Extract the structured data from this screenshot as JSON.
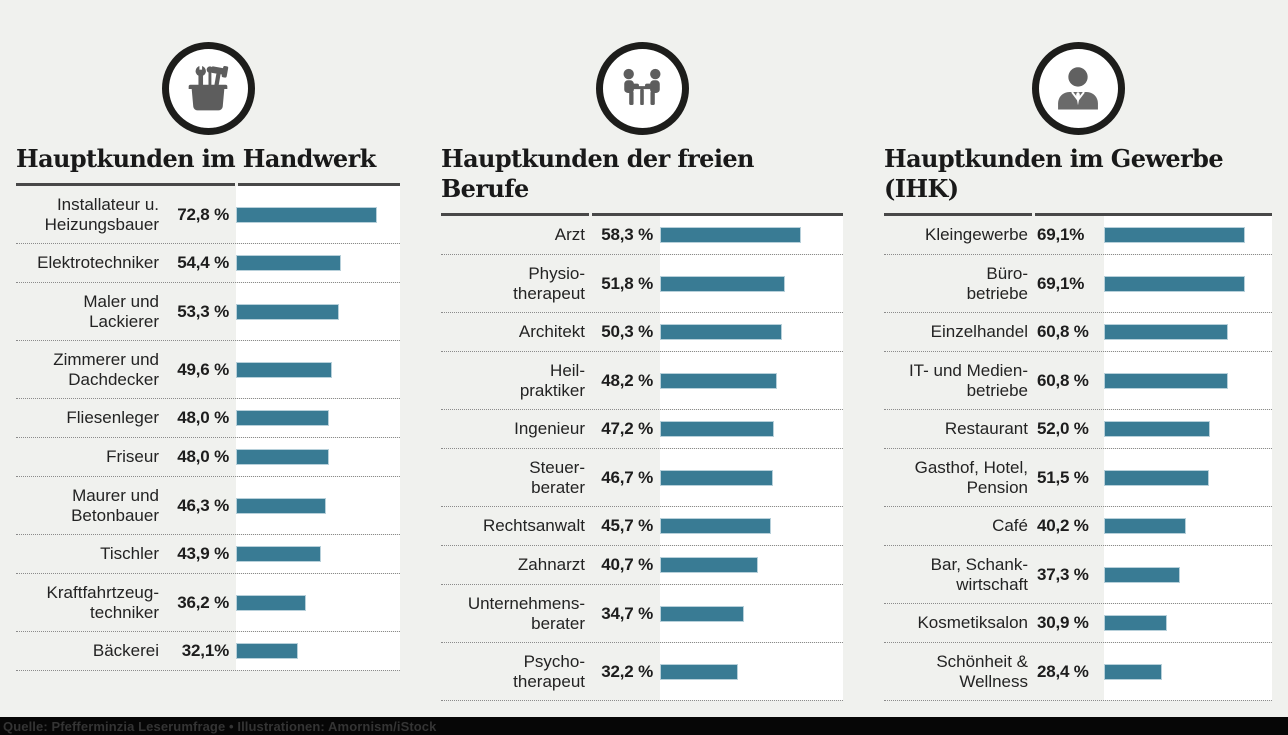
{
  "footer": {
    "text": "Quelle: Pfefferminzia Leserumfrage • Illustrationen: Amornism/iStock"
  },
  "colors": {
    "background": "#f0f1ee",
    "bar": "#397b94",
    "bar_border": "#b7d0da",
    "bar_track": "#ffffff",
    "icon_ring": "#1d1d1b",
    "icon_glyph": "#5d5d5d",
    "title_text": "#191919",
    "footer_bar": "#060606"
  },
  "chart_data": [
    {
      "type": "bar",
      "orientation": "horizontal",
      "title": "Hauptkunden im Handwerk",
      "icon": "toolbox-icon",
      "value_suffix": "%",
      "value_range": [
        0,
        72.8
      ],
      "rows": [
        {
          "label_lines": [
            "Installateur u.",
            "Heizungsbauer"
          ],
          "value": 72.8,
          "display": "72,8 %"
        },
        {
          "label_lines": [
            "Elektrotechniker"
          ],
          "value": 54.4,
          "display": "54,4 %"
        },
        {
          "label_lines": [
            "Maler und",
            "Lackierer"
          ],
          "value": 53.3,
          "display": "53,3 %"
        },
        {
          "label_lines": [
            "Zimmerer und",
            "Dachdecker"
          ],
          "value": 49.6,
          "display": "49,6 %"
        },
        {
          "label_lines": [
            "Fliesenleger"
          ],
          "value": 48.0,
          "display": "48,0 %"
        },
        {
          "label_lines": [
            "Friseur"
          ],
          "value": 48.0,
          "display": "48,0 %"
        },
        {
          "label_lines": [
            "Maurer und",
            "Betonbauer"
          ],
          "value": 46.3,
          "display": "46,3 %"
        },
        {
          "label_lines": [
            "Tischler"
          ],
          "value": 43.9,
          "display": "43,9 %"
        },
        {
          "label_lines": [
            "Kraftfahrtzeug-",
            "techniker"
          ],
          "value": 36.2,
          "display": "36,2 %"
        },
        {
          "label_lines": [
            "Bäckerei"
          ],
          "value": 32.1,
          "display": "32,1%"
        }
      ]
    },
    {
      "type": "bar",
      "orientation": "horizontal",
      "title": "Hauptkunden der freien Berufe",
      "icon": "meeting-icon",
      "value_suffix": "%",
      "value_range": [
        0,
        58.3
      ],
      "rows": [
        {
          "label_lines": [
            "Arzt"
          ],
          "value": 58.3,
          "display": "58,3 %"
        },
        {
          "label_lines": [
            "Physio-",
            "therapeut"
          ],
          "value": 51.8,
          "display": "51,8 %"
        },
        {
          "label_lines": [
            "Architekt"
          ],
          "value": 50.3,
          "display": "50,3 %"
        },
        {
          "label_lines": [
            "Heil-",
            "praktiker"
          ],
          "value": 48.2,
          "display": "48,2 %"
        },
        {
          "label_lines": [
            "Ingenieur"
          ],
          "value": 47.2,
          "display": "47,2 %"
        },
        {
          "label_lines": [
            "Steuer-",
            "berater"
          ],
          "value": 46.7,
          "display": "46,7 %"
        },
        {
          "label_lines": [
            "Rechtsanwalt"
          ],
          "value": 45.7,
          "display": "45,7 %"
        },
        {
          "label_lines": [
            "Zahnarzt"
          ],
          "value": 40.7,
          "display": "40,7 %"
        },
        {
          "label_lines": [
            "Unternehmens-",
            "berater"
          ],
          "value": 34.7,
          "display": "34,7 %"
        },
        {
          "label_lines": [
            "Psycho-",
            "therapeut"
          ],
          "value": 32.2,
          "display": "32,2 %"
        }
      ]
    },
    {
      "type": "bar",
      "orientation": "horizontal",
      "title": "Hauptkunden im Gewerbe (IHK)",
      "icon": "businessman-icon",
      "value_suffix": "%",
      "value_range": [
        0,
        69.1
      ],
      "rows": [
        {
          "label_lines": [
            "Kleingewerbe"
          ],
          "value": 69.1,
          "display": "69,1%"
        },
        {
          "label_lines": [
            "Büro-",
            "betriebe"
          ],
          "value": 69.1,
          "display": "69,1%"
        },
        {
          "label_lines": [
            "Einzelhandel"
          ],
          "value": 60.8,
          "display": "60,8 %"
        },
        {
          "label_lines": [
            "IT- und Medien-",
            "betriebe"
          ],
          "value": 60.8,
          "display": "60,8 %"
        },
        {
          "label_lines": [
            "Restaurant"
          ],
          "value": 52.0,
          "display": "52,0 %"
        },
        {
          "label_lines": [
            "Gasthof, Hotel,",
            "Pension"
          ],
          "value": 51.5,
          "display": "51,5 %"
        },
        {
          "label_lines": [
            "Café"
          ],
          "value": 40.2,
          "display": "40,2 %"
        },
        {
          "label_lines": [
            "Bar, Schank-",
            "wirtschaft"
          ],
          "value": 37.3,
          "display": "37,3 %"
        },
        {
          "label_lines": [
            "Kosmetiksalon"
          ],
          "value": 30.9,
          "display": "30,9 %"
        },
        {
          "label_lines": [
            "Schönheit &",
            "Wellness"
          ],
          "value": 28.4,
          "display": "28,4 %"
        }
      ]
    }
  ]
}
